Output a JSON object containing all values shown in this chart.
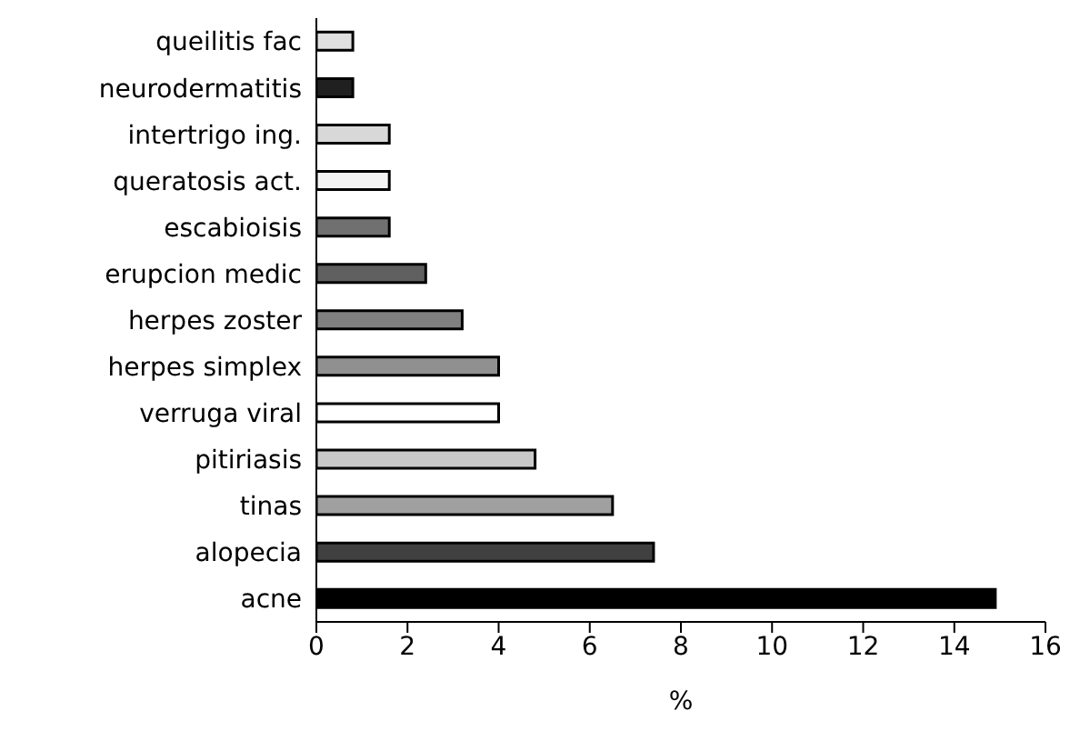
{
  "chart_data": {
    "type": "bar",
    "orientation": "horizontal",
    "xlabel": "%",
    "categories": [
      "queilitis fac",
      "neurodermatitis",
      "intertrigo ing.",
      "queratosis act.",
      "escabioisis",
      "erupcion medic",
      "herpes zoster",
      "herpes simplex",
      "verruga viral",
      "pitiriasis",
      "tinas",
      "alopecia",
      "acne"
    ],
    "values": [
      0.8,
      0.8,
      1.6,
      1.6,
      1.6,
      2.4,
      3.2,
      4.0,
      4.0,
      4.8,
      6.5,
      7.4,
      14.9
    ],
    "colors": [
      "#e0e0e0",
      "#202020",
      "#d8d8d8",
      "#f4f4f4",
      "#707070",
      "#606060",
      "#808080",
      "#909090",
      "#ffffff",
      "#c8c8c8",
      "#a0a0a0",
      "#404040",
      "#000000"
    ],
    "xlim": [
      0,
      16
    ],
    "xticks": [
      0,
      2,
      4,
      6,
      8,
      10,
      12,
      14,
      16
    ],
    "grid": false,
    "legend": false
  }
}
